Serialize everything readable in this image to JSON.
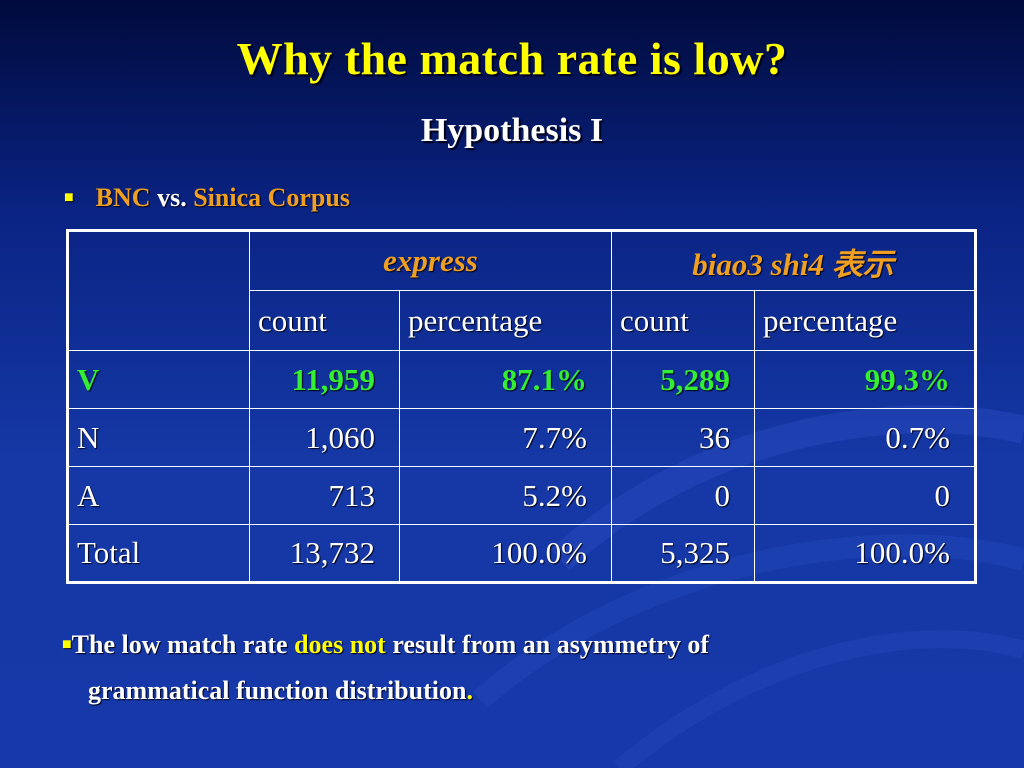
{
  "slide": {
    "title": "Why the match rate is low?",
    "subtitle": "Hypothesis I",
    "bullet1": {
      "a": "BNC",
      "b": " vs. ",
      "c": "Sinica Corpus"
    },
    "bullet2": {
      "pre": "The low match rate ",
      "highlight": "does not",
      "post": " result from an asymmetry of",
      "line2": "grammatical function distribution",
      "end": "."
    }
  },
  "table": {
    "group_headers": [
      "express",
      "biao3 shi4 表示"
    ],
    "sub_headers": [
      "count",
      "percentage",
      "count",
      "percentage"
    ],
    "rows": [
      {
        "label": "V",
        "cells": [
          "11,959",
          "87.1%",
          "5,289",
          "99.3%"
        ]
      },
      {
        "label": "N",
        "cells": [
          "1,060",
          "7.7%",
          "36",
          "0.7%"
        ]
      },
      {
        "label": "A",
        "cells": [
          "713",
          "5.2%",
          "0",
          "0"
        ]
      },
      {
        "label": "Total",
        "cells": [
          "13,732",
          "100.0%",
          "5,325",
          "100.0%"
        ]
      }
    ]
  },
  "colors": {
    "title": "#ffff00",
    "accent_orange": "#f0a020",
    "highlight_green": "#33ee33",
    "background": "#1538a6"
  }
}
